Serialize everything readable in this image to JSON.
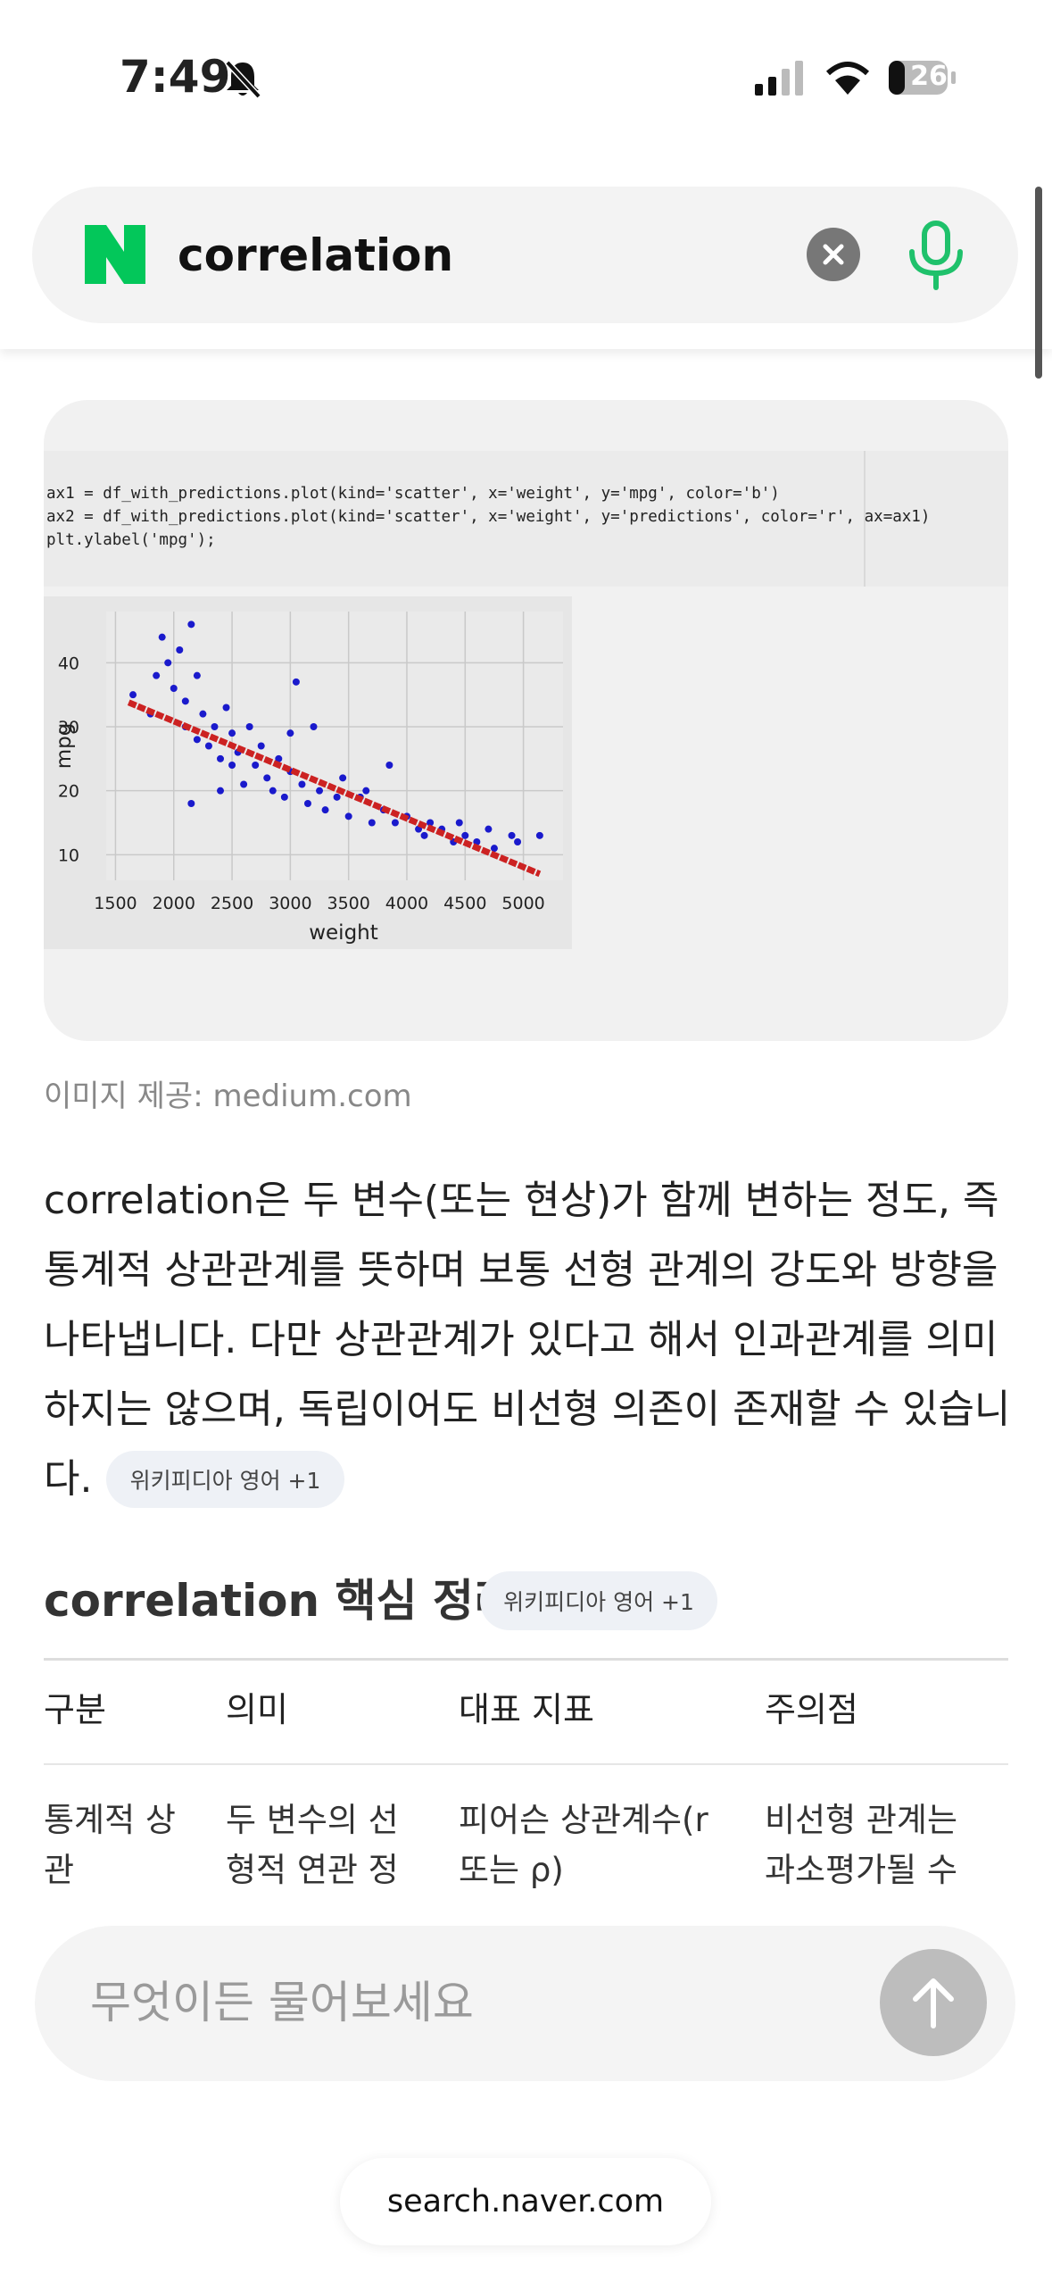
{
  "status_bar": {
    "time": "7:49",
    "battery": "26"
  },
  "search": {
    "query": "correlation"
  },
  "image_card": {
    "code": [
      "ax1 = df_with_predictions.plot(kind='scatter', x='weight', y='mpg', color='b')",
      "ax2 = df_with_predictions.plot(kind='scatter', x='weight', y='predictions', color='r', ax=ax1)",
      "plt.ylabel('mpg');"
    ],
    "chart": {
      "type": "scatter",
      "xlabel": "weight",
      "ylabel": "mpg",
      "xlim": [
        1420,
        5340
      ],
      "ylim": [
        6,
        48
      ],
      "xticks": [
        1500,
        2000,
        2500,
        3000,
        3500,
        4000,
        4500,
        5000
      ],
      "yticks": [
        10,
        20,
        30,
        40
      ],
      "grid": true,
      "series": [
        {
          "kind": "points",
          "color": "#1a1acc",
          "x": [
            1650,
            1800,
            1850,
            1900,
            1950,
            2000,
            2050,
            2100,
            2100,
            2150,
            2200,
            2200,
            2250,
            2300,
            2350,
            2400,
            2450,
            2500,
            2500,
            2550,
            2600,
            2650,
            2700,
            2750,
            2800,
            2850,
            2900,
            2950,
            3000,
            3050,
            3100,
            3150,
            3200,
            3250,
            3300,
            3400,
            3450,
            3500,
            3600,
            3650,
            3700,
            3800,
            3850,
            3900,
            4000,
            4100,
            4150,
            4200,
            4300,
            4400,
            4450,
            4500,
            4600,
            4700,
            4750,
            4900,
            4950,
            5140,
            2150,
            2400,
            3000
          ],
          "values": [
            35,
            32,
            38,
            44,
            40,
            36,
            42,
            34,
            30,
            46,
            38,
            28,
            32,
            27,
            30,
            25,
            33,
            29,
            24,
            26,
            21,
            30,
            24,
            27,
            22,
            20,
            25,
            19,
            23,
            37,
            21,
            18,
            30,
            20,
            17,
            19,
            22,
            16,
            19,
            20,
            15,
            17,
            24,
            15,
            16,
            14,
            13,
            15,
            14,
            12,
            15,
            13,
            12,
            14,
            11,
            13,
            12,
            13,
            18,
            20,
            29
          ]
        },
        {
          "kind": "line",
          "color": "#cc2222",
          "x": [
            1613,
            5140
          ],
          "values": [
            33.8,
            7
          ]
        }
      ]
    },
    "credit": "이미지 제공: medium.com"
  },
  "answer": {
    "lines": [
      "correlation은 두 변수(또는 현상)가 함께 변하는 정도, 즉",
      "통계적 상관관계를 뜻하며 보통 선형 관계의 강도와 방향을",
      "나타냅니다. 다만 상관관계가 있다고 해서 인과관계를 의미",
      "하지는 않으며, 독립이어도 비선형 의존이 존재할 수 있습니",
      "다."
    ],
    "source_badge": "위키피디아 영어 +1"
  },
  "summary": {
    "title": "correlation 핵심 정리",
    "source_badge": "위키피디아 영어 +1",
    "table": {
      "header": [
        "구분",
        "의미",
        "대표 지표",
        "주의점"
      ],
      "rows": [
        [
          [
            "통계적 상",
            "관"
          ],
          [
            "두 변수의 선",
            "형적 연관 정"
          ],
          [
            "피어슨 상관계수(r",
            "또는 ρ)"
          ],
          [
            "비선형 관계는",
            "과소평가될 수"
          ]
        ]
      ]
    }
  },
  "input": {
    "placeholder": "무엇이든 물어보세요"
  },
  "footer": {
    "url": "search.naver.com"
  }
}
